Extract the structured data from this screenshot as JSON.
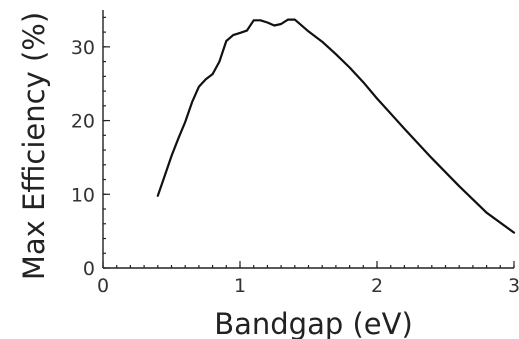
{
  "chart_data": {
    "type": "line",
    "title": "",
    "xlabel": "Bandgap (eV)",
    "ylabel": "Max Efficiency (%)",
    "xlim": [
      0,
      3
    ],
    "ylim": [
      0,
      35
    ],
    "xticks": [
      0,
      1,
      2,
      3
    ],
    "yticks": [
      0,
      10,
      20,
      30
    ],
    "grid": false,
    "series": [
      {
        "color": "#111111",
        "x": [
          0.4,
          0.45,
          0.5,
          0.55,
          0.6,
          0.65,
          0.7,
          0.75,
          0.8,
          0.85,
          0.9,
          0.95,
          1.0,
          1.05,
          1.1,
          1.15,
          1.2,
          1.25,
          1.3,
          1.35,
          1.4,
          1.5,
          1.6,
          1.7,
          1.8,
          1.9,
          2.0,
          2.2,
          2.4,
          2.6,
          2.8,
          3.0
        ],
        "y": [
          9.8,
          12.5,
          15.2,
          17.6,
          19.8,
          22.5,
          24.6,
          25.6,
          26.3,
          28.0,
          30.8,
          31.6,
          31.9,
          32.2,
          33.6,
          33.6,
          33.3,
          32.9,
          33.1,
          33.7,
          33.7,
          32.1,
          30.7,
          29.0,
          27.2,
          25.2,
          23.0,
          18.9,
          14.9,
          11.1,
          7.5,
          4.8
        ]
      }
    ]
  }
}
